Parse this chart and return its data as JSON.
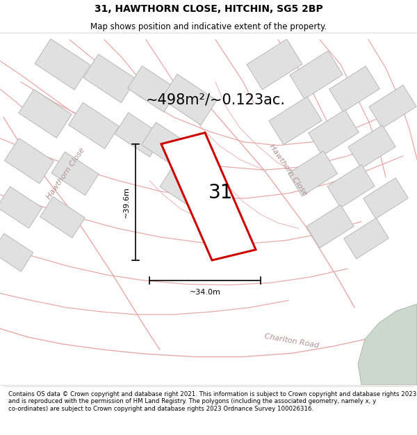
{
  "title": "31, HAWTHORN CLOSE, HITCHIN, SG5 2BP",
  "subtitle": "Map shows position and indicative extent of the property.",
  "area_text": "~498m²/~0.123ac.",
  "dim_width": "~34.0m",
  "dim_height": "~39.6m",
  "plot_number": "31",
  "road_label_left": "Hawthorn Close",
  "road_label_right": "Hawthorn Close",
  "road_label_bottom": "Charlton Road",
  "disclaimer": "Contains OS data © Crown copyright and database right 2021. This information is subject to Crown copyright and database rights 2023 and is reproduced with the permission of HM Land Registry. The polygons (including the associated geometry, namely x, y co-ordinates) are subject to Crown copyright and database rights 2023 Ordnance Survey 100026316.",
  "bg_color": "#ffffff",
  "map_bg_color": "#f8f5f5",
  "road_color": "#e8a8a8",
  "road_lw": 0.9,
  "building_color": "#e0e0e0",
  "building_edge_color": "#b8b8b8",
  "highlight_color": "#cc0000",
  "highlight_fill": "#ffffff",
  "green_area_color": "#ccd8cc",
  "title_fontsize": 10,
  "subtitle_fontsize": 8.5,
  "area_fontsize": 15,
  "plot_num_fontsize": 20,
  "dim_fontsize": 8,
  "road_fontsize": 8,
  "disclaimer_fontsize": 6.2
}
